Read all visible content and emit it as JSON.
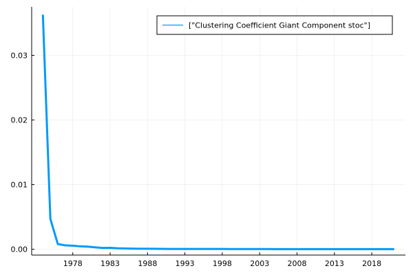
{
  "chart_data": {
    "type": "line",
    "title": "",
    "xlabel": "",
    "ylabel": "",
    "xlim": [
      1972.5,
      2022.5
    ],
    "ylim": [
      -0.0009,
      0.0375
    ],
    "grid": true,
    "legend_position": "top-right",
    "x_ticks": [
      1978,
      1983,
      1988,
      1993,
      1998,
      2003,
      2008,
      2013,
      2018
    ],
    "y_ticks": [
      0.0,
      0.01,
      0.02,
      0.03
    ],
    "x_tick_labels": [
      "1978",
      "1983",
      "1988",
      "1993",
      "1998",
      "2003",
      "2008",
      "2013",
      "2018"
    ],
    "y_tick_labels": [
      "0.00",
      "0.01",
      "0.02",
      "0.03"
    ],
    "series": [
      {
        "name": "[\"Clustering Coefficient Giant Component stoc\"]",
        "color": "#009af9",
        "x": [
          1974,
          1975,
          1976,
          1977,
          1978,
          1979,
          1980,
          1981,
          1982,
          1983,
          1984,
          1985,
          1986,
          1987,
          1988,
          1989,
          1990,
          1991,
          1992,
          1993,
          1994,
          1995,
          1996,
          1997,
          1998,
          1999,
          2000,
          2001,
          2002,
          2003,
          2004,
          2005,
          2006,
          2007,
          2008,
          2009,
          2010,
          2011,
          2012,
          2013,
          2014,
          2015,
          2016,
          2017,
          2018,
          2019,
          2020,
          2021
        ],
        "y": [
          0.0363,
          0.0047,
          0.0008,
          0.0006,
          0.00055,
          0.00045,
          0.0004,
          0.0003,
          0.0002,
          0.00022,
          0.00015,
          0.00012,
          0.0001,
          9e-05,
          8e-05,
          7e-05,
          6e-05,
          5e-05,
          5e-05,
          4e-05,
          4e-05,
          4e-05,
          4e-05,
          4e-05,
          4e-05,
          3e-05,
          3e-05,
          3e-05,
          3e-05,
          3e-05,
          3e-05,
          2e-05,
          2e-05,
          2e-05,
          2e-05,
          2e-05,
          2e-05,
          2e-05,
          2e-05,
          2e-05,
          2e-05,
          2e-05,
          2e-05,
          2e-05,
          2e-05,
          2e-05,
          2e-05,
          2e-05
        ]
      }
    ]
  }
}
